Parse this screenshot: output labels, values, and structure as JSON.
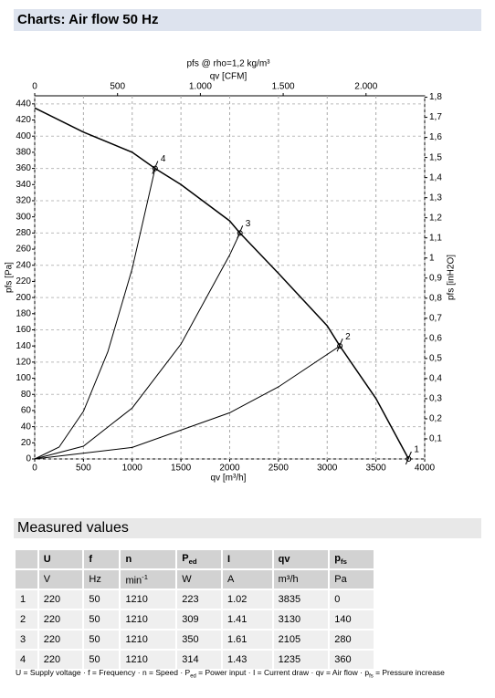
{
  "header": {
    "title": "Charts: Air flow 50 Hz"
  },
  "chart_data": {
    "type": "line",
    "title": "pfs @ rho=1,2 kg/m³",
    "x2_label": "qv [CFM]",
    "x_label": "qv [m³/h]",
    "y_label": "pfs [Pa]",
    "y2_label": "pfs [inH2O]",
    "xlim": [
      0,
      4000
    ],
    "xticks": [
      0,
      500,
      1000,
      1500,
      2000,
      2500,
      3000,
      3500,
      4000
    ],
    "ylim": [
      0,
      450
    ],
    "yticks": [
      0,
      20,
      40,
      60,
      80,
      100,
      120,
      140,
      160,
      180,
      200,
      220,
      240,
      260,
      280,
      300,
      320,
      340,
      360,
      380,
      400,
      420,
      440
    ],
    "x2lim": [
      0,
      2354
    ],
    "x2ticks": [
      0,
      500,
      {
        "value": 1000,
        "label": "1.000"
      },
      {
        "value": 1500,
        "label": "1.500"
      },
      {
        "value": 2000,
        "label": "2.000"
      }
    ],
    "y2lim": [
      0,
      1.807
    ],
    "y2ticks": [
      {
        "value": 0.1,
        "label": "0,1"
      },
      {
        "value": 0.2,
        "label": "0,2"
      },
      {
        "value": 0.3,
        "label": "0,3"
      },
      {
        "value": 0.4,
        "label": "0,4"
      },
      {
        "value": 0.5,
        "label": "0,5"
      },
      {
        "value": 0.6,
        "label": "0,6"
      },
      {
        "value": 0.7,
        "label": "0,7"
      },
      {
        "value": 0.8,
        "label": "0,8"
      },
      {
        "value": 0.9,
        "label": "0,9"
      },
      1,
      {
        "value": 1.1,
        "label": "1,1"
      },
      {
        "value": 1.2,
        "label": "1,2"
      },
      {
        "value": 1.3,
        "label": "1,3"
      },
      {
        "value": 1.4,
        "label": "1,4"
      },
      {
        "value": 1.5,
        "label": "1,5"
      },
      {
        "value": 1.6,
        "label": "1,6"
      },
      {
        "value": 1.7,
        "label": "1,7"
      },
      {
        "value": 1.8,
        "label": "1,8"
      }
    ],
    "grid": true,
    "color": "#000000",
    "curves": [
      {
        "x": [
          0,
          500,
          1000,
          1235,
          1500,
          2000,
          2105,
          2500,
          3000,
          3130,
          3500,
          3835
        ],
        "values": [
          435,
          405,
          380,
          360,
          340,
          295,
          280,
          230,
          165,
          140,
          75,
          0
        ]
      },
      {
        "x": [
          0,
          250,
          500,
          750,
          1000,
          1235
        ],
        "values": [
          0,
          14.7,
          59,
          132.8,
          236,
          360
        ]
      },
      {
        "x": [
          0,
          500,
          1000,
          1500,
          2000,
          2105
        ],
        "values": [
          0,
          15.8,
          63.2,
          142.2,
          252.8,
          280
        ]
      },
      {
        "x": [
          0,
          1000,
          2000,
          2500,
          3130
        ],
        "values": [
          0,
          14.3,
          57.2,
          89.3,
          140
        ]
      }
    ],
    "points": [
      {
        "label": "1",
        "x": 3835,
        "y": 0
      },
      {
        "label": "2",
        "x": 3130,
        "y": 140
      },
      {
        "label": "3",
        "x": 2105,
        "y": 280
      },
      {
        "label": "4",
        "x": 1235,
        "y": 360
      }
    ]
  },
  "section": {
    "title": "Measured values"
  },
  "table": {
    "header": [
      {
        "main": "U"
      },
      {
        "main": "f"
      },
      {
        "main": "n"
      },
      {
        "main": "P",
        "sub": "ed"
      },
      {
        "main": "I"
      },
      {
        "main": "qv"
      },
      {
        "main": "p",
        "sub": "fs"
      }
    ],
    "units": [
      {
        "main": "V"
      },
      {
        "main": "Hz"
      },
      {
        "main": "min",
        "sup": "-1"
      },
      {
        "main": "W"
      },
      {
        "main": "A"
      },
      {
        "main": "m³/h"
      },
      {
        "main": "Pa"
      }
    ],
    "rows": [
      [
        "1",
        220,
        50,
        1210,
        223,
        1.02,
        3835,
        0
      ],
      [
        "2",
        220,
        50,
        1210,
        309,
        1.41,
        3130,
        140
      ],
      [
        "3",
        220,
        50,
        1210,
        350,
        1.61,
        2105,
        280
      ],
      [
        "4",
        220,
        50,
        1210,
        314,
        1.43,
        1235,
        360
      ]
    ]
  },
  "footnote": {
    "separator": " · ",
    "items": [
      {
        "sym": "U",
        "rest": " = Supply voltage"
      },
      {
        "sym": "f",
        "rest": " = Frequency"
      },
      {
        "sym": "n",
        "rest": " = Speed"
      },
      {
        "sym": "P",
        "sub": "ed",
        "rest": " = Power input"
      },
      {
        "sym": "I",
        "rest": " = Current draw"
      },
      {
        "sym": "qv",
        "rest": " = Air flow"
      },
      {
        "sym": "p",
        "sub": "fs",
        "rest": " = Pressure increase"
      }
    ]
  }
}
